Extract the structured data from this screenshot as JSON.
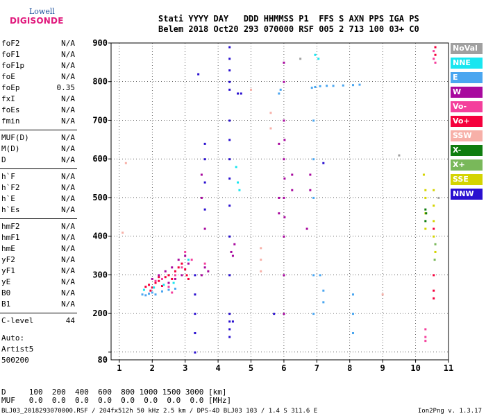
{
  "logo": {
    "line1": "Lowell",
    "line2": "DIGISONDE"
  },
  "header": {
    "row1": "Stati YYYY DAY   DDD HHMMSS P1  FFS S AXN PPS IGA PS",
    "row2": "Belem 2018 Oct20 293 070000 RSF 005 2 713 100 03+ C0"
  },
  "params": [
    {
      "name": "foF2",
      "value": "N/A"
    },
    {
      "name": "foF1",
      "value": "N/A"
    },
    {
      "name": "foF1p",
      "value": "N/A"
    },
    {
      "name": "foE",
      "value": "N/A"
    },
    {
      "name": "foEp",
      "value": "0.35"
    },
    {
      "name": "fxI",
      "value": "N/A"
    },
    {
      "name": "foEs",
      "value": "N/A"
    },
    {
      "name": "fmin",
      "value": "N/A"
    },
    {
      "name": "MUF(D)",
      "value": "N/A"
    },
    {
      "name": "M(D)",
      "value": "N/A"
    },
    {
      "name": "D",
      "value": "N/A"
    },
    {
      "name": "h`F",
      "value": "N/A"
    },
    {
      "name": "h`F2",
      "value": "N/A"
    },
    {
      "name": "h`E",
      "value": "N/A"
    },
    {
      "name": "h`Es",
      "value": "N/A"
    },
    {
      "name": "hmF2",
      "value": "N/A"
    },
    {
      "name": "hmF1",
      "value": "N/A"
    },
    {
      "name": "hmE",
      "value": "N/A"
    },
    {
      "name": "yF2",
      "value": "N/A"
    },
    {
      "name": "yF1",
      "value": "N/A"
    },
    {
      "name": "yE",
      "value": "N/A"
    },
    {
      "name": "B0",
      "value": "N/A"
    },
    {
      "name": "B1",
      "value": "N/A"
    },
    {
      "name": "C-level",
      "value": "44"
    }
  ],
  "auto": {
    "line1": "Auto:",
    "line2": "Artist5",
    "line3": "500200"
  },
  "legend": [
    {
      "label": "NoVal",
      "color": "#a0a0a0"
    },
    {
      "label": "NNE",
      "color": "#19e6f0"
    },
    {
      "label": "E",
      "color": "#4aa6f0"
    },
    {
      "label": "W",
      "color": "#a8099e"
    },
    {
      "label": "Vo-",
      "color": "#f43f9c"
    },
    {
      "label": "Vo+",
      "color": "#f5003c"
    },
    {
      "label": "SSW",
      "color": "#f7b0a8"
    },
    {
      "label": "X-",
      "color": "#0f7d0f"
    },
    {
      "label": "X+",
      "color": "#79b85a"
    },
    {
      "label": "SSE",
      "color": "#d4d400"
    },
    {
      "label": "NNW",
      "color": "#2a10d0"
    }
  ],
  "bottom": {
    "d_row": "D     100  200  400  600  800 1000 1500 3000 [km]",
    "muf_row": "MUF   0.0  0.0  0.0  0.0  0.0  0.0  0.0  0.0 [MHz]"
  },
  "footer": "BLJ03_2018293070000.RSF / 204fx512h 50 kHz 2.5 km / DPS-4D BLJ03 103 / 1.4 S 311.6 E",
  "version": "Ion2Png v. 1.3.17",
  "chart_data": {
    "type": "scatter",
    "x_ticks": [
      1,
      2,
      3,
      4,
      5,
      6,
      7,
      8,
      9,
      10,
      11
    ],
    "y_ticks": [
      100,
      200,
      300,
      400,
      500,
      600,
      700,
      800,
      900
    ],
    "y_tick_labels": [
      "",
      "200",
      "300",
      "400",
      "500",
      "600",
      "700",
      "800",
      "900"
    ],
    "y_bottom_label": "80",
    "xlim": [
      0.75,
      11
    ],
    "ylim": [
      80,
      900
    ],
    "grid": true,
    "series": [
      {
        "color": "#f5003c",
        "points": [
          [
            1.8,
            270
          ],
          [
            1.9,
            275
          ],
          [
            2.0,
            268
          ],
          [
            2.1,
            280
          ],
          [
            2.2,
            285
          ],
          [
            2.3,
            272
          ],
          [
            2.4,
            295
          ],
          [
            2.5,
            300
          ],
          [
            2.6,
            290
          ],
          [
            2.7,
            310
          ],
          [
            2.8,
            320
          ],
          [
            2.9,
            330
          ],
          [
            3.0,
            315
          ],
          [
            2.2,
            295
          ],
          [
            1.95,
            260
          ],
          [
            3.05,
            300
          ],
          [
            3.1,
            290
          ],
          [
            10.55,
            420
          ],
          [
            10.55,
            300
          ],
          [
            10.55,
            260
          ],
          [
            10.55,
            240
          ],
          [
            10.6,
            870
          ],
          [
            10.6,
            890
          ]
        ]
      },
      {
        "color": "#a8099e",
        "points": [
          [
            2.0,
            290
          ],
          [
            2.2,
            300
          ],
          [
            2.4,
            310
          ],
          [
            2.6,
            320
          ],
          [
            2.8,
            340
          ],
          [
            3.0,
            350
          ],
          [
            2.5,
            280
          ],
          [
            2.7,
            290
          ],
          [
            2.9,
            300
          ],
          [
            3.1,
            330
          ],
          [
            3.5,
            300
          ],
          [
            3.6,
            320
          ],
          [
            3.7,
            310
          ],
          [
            4.45,
            350
          ],
          [
            4.5,
            380
          ],
          [
            4.4,
            360
          ],
          [
            6.0,
            850
          ],
          [
            6.0,
            800
          ],
          [
            6.0,
            700
          ],
          [
            6.0,
            600
          ],
          [
            6.0,
            500
          ],
          [
            6.0,
            400
          ],
          [
            6.0,
            300
          ],
          [
            6.0,
            200
          ],
          [
            6.02,
            650
          ],
          [
            6.02,
            550
          ],
          [
            6.02,
            450
          ],
          [
            5.85,
            640
          ],
          [
            5.85,
            500
          ],
          [
            5.85,
            460
          ],
          [
            6.25,
            560
          ],
          [
            6.25,
            520
          ],
          [
            6.8,
            560
          ],
          [
            6.8,
            520
          ],
          [
            6.7,
            420
          ],
          [
            3.5,
            560
          ],
          [
            3.5,
            500
          ],
          [
            3.6,
            420
          ]
        ]
      },
      {
        "color": "#f43f9c",
        "points": [
          [
            2.1,
            285
          ],
          [
            2.3,
            290
          ],
          [
            2.5,
            270
          ],
          [
            2.7,
            300
          ],
          [
            2.9,
            320
          ],
          [
            3.0,
            360
          ],
          [
            2.6,
            255
          ],
          [
            3.2,
            340
          ],
          [
            3.6,
            330
          ],
          [
            10.3,
            160
          ],
          [
            10.3,
            140
          ],
          [
            10.3,
            130
          ],
          [
            10.55,
            880
          ],
          [
            10.55,
            860
          ],
          [
            10.6,
            850
          ]
        ]
      },
      {
        "color": "#4aa6f0",
        "points": [
          [
            1.7,
            250
          ],
          [
            1.8,
            248
          ],
          [
            1.9,
            252
          ],
          [
            2.0,
            255
          ],
          [
            2.1,
            250
          ],
          [
            2.3,
            258
          ],
          [
            2.5,
            262
          ],
          [
            2.7,
            265
          ],
          [
            6.85,
            785
          ],
          [
            6.95,
            787
          ],
          [
            7.1,
            789
          ],
          [
            7.3,
            790
          ],
          [
            7.5,
            790
          ],
          [
            7.8,
            791
          ],
          [
            8.1,
            792
          ],
          [
            8.3,
            793
          ],
          [
            6.9,
            700
          ],
          [
            6.9,
            600
          ],
          [
            6.9,
            500
          ],
          [
            6.9,
            300
          ],
          [
            6.9,
            200
          ],
          [
            7.1,
            300
          ],
          [
            7.2,
            260
          ],
          [
            7.2,
            230
          ],
          [
            5.9,
            780
          ],
          [
            5.85,
            770
          ],
          [
            8.1,
            250
          ],
          [
            8.1,
            200
          ],
          [
            8.1,
            150
          ]
        ]
      },
      {
        "color": "#19e6f0",
        "points": [
          [
            1.75,
            262
          ],
          [
            2.05,
            268
          ],
          [
            2.35,
            275
          ],
          [
            2.65,
            280
          ],
          [
            6.95,
            870
          ],
          [
            7.05,
            860
          ],
          [
            3.1,
            340
          ],
          [
            4.55,
            580
          ],
          [
            4.6,
            540
          ],
          [
            4.65,
            520
          ]
        ]
      },
      {
        "color": "#2a10d0",
        "points": [
          [
            4.35,
            890
          ],
          [
            4.35,
            860
          ],
          [
            4.35,
            830
          ],
          [
            4.35,
            800
          ],
          [
            4.35,
            780
          ],
          [
            4.35,
            700
          ],
          [
            4.35,
            650
          ],
          [
            4.35,
            600
          ],
          [
            4.35,
            550
          ],
          [
            4.35,
            480
          ],
          [
            4.35,
            400
          ],
          [
            4.35,
            300
          ],
          [
            4.35,
            200
          ],
          [
            4.35,
            180
          ],
          [
            4.35,
            160
          ],
          [
            4.35,
            140
          ],
          [
            3.3,
            300
          ],
          [
            3.3,
            250
          ],
          [
            3.3,
            200
          ],
          [
            3.3,
            150
          ],
          [
            3.3,
            100
          ],
          [
            3.6,
            640
          ],
          [
            3.6,
            600
          ],
          [
            3.6,
            540
          ],
          [
            3.6,
            470
          ],
          [
            3.4,
            820
          ],
          [
            4.6,
            770
          ],
          [
            4.7,
            770
          ],
          [
            5.7,
            200
          ],
          [
            7.2,
            590
          ],
          [
            4.45,
            180
          ]
        ]
      },
      {
        "color": "#d4d400",
        "points": [
          [
            10.25,
            560
          ],
          [
            10.3,
            520
          ],
          [
            10.3,
            500
          ],
          [
            10.3,
            460
          ],
          [
            10.3,
            420
          ],
          [
            10.55,
            520
          ],
          [
            10.55,
            480
          ],
          [
            10.55,
            440
          ],
          [
            10.55,
            400
          ],
          [
            10.6,
            360
          ]
        ]
      },
      {
        "color": "#0f7d0f",
        "points": [
          [
            10.3,
            470
          ],
          [
            10.3,
            440
          ],
          [
            10.32,
            460
          ]
        ]
      },
      {
        "color": "#79b85a",
        "points": [
          [
            10.6,
            380
          ],
          [
            10.58,
            340
          ]
        ]
      },
      {
        "color": "#f7b0a8",
        "points": [
          [
            5.3,
            370
          ],
          [
            5.3,
            340
          ],
          [
            5.3,
            310
          ],
          [
            5.6,
            720
          ],
          [
            5.6,
            680
          ],
          [
            5.0,
            780
          ],
          [
            1.2,
            590
          ],
          [
            1.1,
            410
          ],
          [
            9.0,
            250
          ]
        ]
      },
      {
        "color": "#a0a0a0",
        "points": [
          [
            10.7,
            500
          ],
          [
            6.5,
            860
          ],
          [
            9.5,
            610
          ]
        ]
      }
    ]
  }
}
